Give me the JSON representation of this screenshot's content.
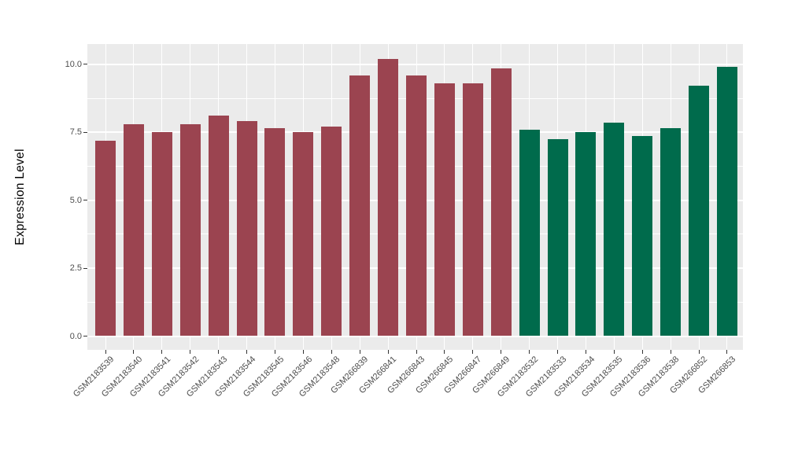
{
  "chart_data": {
    "type": "bar",
    "title": "",
    "xlabel": "",
    "ylabel": "Expression Level",
    "categories": [
      "GSM2183539",
      "GSM2183540",
      "GSM2183541",
      "GSM2183542",
      "GSM2183543",
      "GSM2183544",
      "GSM2183545",
      "GSM2183546",
      "GSM2183548",
      "GSM266839",
      "GSM266841",
      "GSM266843",
      "GSM266845",
      "GSM266847",
      "GSM266849",
      "GSM2183532",
      "GSM2183533",
      "GSM2183534",
      "GSM2183535",
      "GSM2183536",
      "GSM2183538",
      "GSM266852",
      "GSM266853"
    ],
    "values": [
      7.2,
      7.8,
      7.5,
      7.8,
      8.1,
      7.9,
      7.65,
      7.5,
      7.7,
      9.6,
      10.2,
      9.6,
      9.3,
      9.3,
      9.85,
      7.6,
      7.25,
      7.5,
      7.85,
      7.35,
      7.65,
      9.2,
      9.9
    ],
    "bar_colors": [
      "#9B4450",
      "#9B4450",
      "#9B4450",
      "#9B4450",
      "#9B4450",
      "#9B4450",
      "#9B4450",
      "#9B4450",
      "#9B4450",
      "#9B4450",
      "#9B4450",
      "#9B4450",
      "#9B4450",
      "#9B4450",
      "#9B4450",
      "#006B4C",
      "#006B4C",
      "#006B4C",
      "#006B4C",
      "#006B4C",
      "#006B4C",
      "#006B4C",
      "#006B4C"
    ],
    "yticks": [
      0,
      2.5,
      5,
      7.5,
      10
    ],
    "ytick_labels": [
      "0.0",
      "2.5",
      "5.0",
      "7.5",
      "10.0"
    ],
    "minor_yticks": [
      1.25,
      3.75,
      6.25,
      8.75
    ],
    "ylim": [
      0,
      10.2
    ],
    "grid": "major+minor",
    "legend": "none"
  },
  "style": {
    "panel_bg": "#EBEBEB",
    "grid_color": "#FFFFFF",
    "tick_mark_color": "#333333",
    "axis_text_color": "#4D4D4D",
    "axis_title_color": "#000000"
  }
}
